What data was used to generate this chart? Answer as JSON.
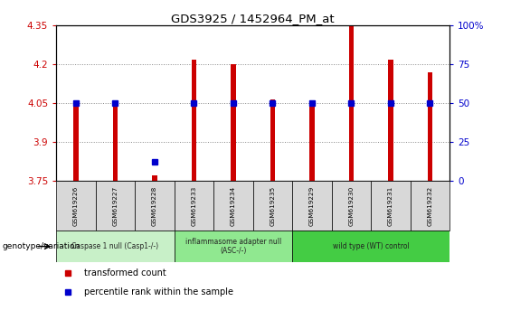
{
  "title": "GDS3925 / 1452964_PM_at",
  "samples": [
    "GSM619226",
    "GSM619227",
    "GSM619228",
    "GSM619233",
    "GSM619234",
    "GSM619235",
    "GSM619229",
    "GSM619230",
    "GSM619231",
    "GSM619232"
  ],
  "red_values": [
    4.04,
    4.04,
    3.77,
    4.22,
    4.2,
    4.065,
    4.04,
    4.35,
    4.22,
    4.17
  ],
  "blue_percentile": [
    50,
    50,
    12,
    50,
    50,
    50,
    50,
    50,
    50,
    50
  ],
  "ylim_left": [
    3.75,
    4.35
  ],
  "ylim_right": [
    0,
    100
  ],
  "yticks_left": [
    3.75,
    3.9,
    4.05,
    4.2,
    4.35
  ],
  "yticks_right": [
    0,
    25,
    50,
    75,
    100
  ],
  "ytick_labels_left": [
    "3.75",
    "3.9",
    "4.05",
    "4.2",
    "4.35"
  ],
  "ytick_labels_right": [
    "0",
    "25",
    "50",
    "75",
    "100%"
  ],
  "groups": [
    {
      "label": "Caspase 1 null (Casp1-/-)",
      "start": 0,
      "end": 3,
      "color": "#c8f0c8"
    },
    {
      "label": "inflammasome adapter null\n(ASC-/-)",
      "start": 3,
      "end": 6,
      "color": "#90e890"
    },
    {
      "label": "wild type (WT) control",
      "start": 6,
      "end": 10,
      "color": "#44cc44"
    }
  ],
  "bar_color": "#cc0000",
  "blue_color": "#0000cc",
  "legend_items": [
    {
      "color": "#cc0000",
      "label": "transformed count"
    },
    {
      "color": "#0000cc",
      "label": "percentile rank within the sample"
    }
  ],
  "grid_color": "#888888",
  "ylabel_left_color": "#cc0000",
  "ylabel_right_color": "#0000cc",
  "bar_width": 0.12,
  "blue_marker_size": 4
}
